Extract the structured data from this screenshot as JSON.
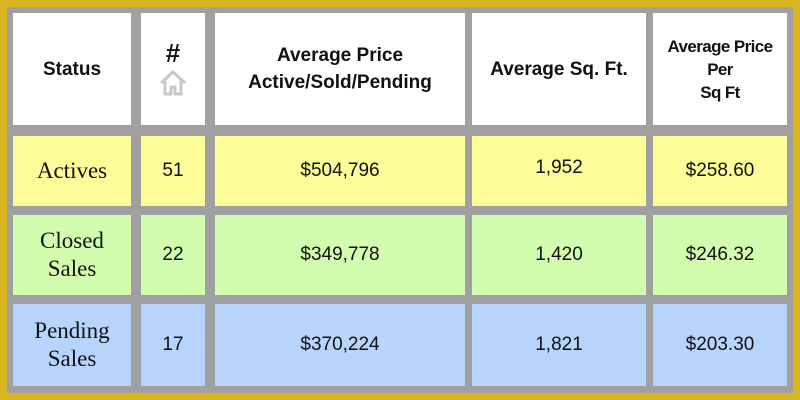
{
  "header": {
    "status": "Status",
    "count": "#",
    "count_icon": "home-icon",
    "avg_price": [
      "Average Price",
      "Active/Sold/Pending"
    ],
    "avg_sqft": "Average Sq. Ft.",
    "avg_ppsf": [
      "Average Price",
      "Per",
      "Sq Ft"
    ]
  },
  "rows": [
    {
      "status": [
        "Actives"
      ],
      "count": "51",
      "avg_price": "$504,796",
      "avg_sqft": "1,952",
      "ppsf": "$258.60",
      "color": "#fcfc98"
    },
    {
      "status": [
        "Closed",
        "Sales"
      ],
      "count": "22",
      "avg_price": "$349,778",
      "avg_sqft": "1,420",
      "ppsf": "$246.32",
      "color": "#d3fdae"
    },
    {
      "status": [
        "Pending",
        "Sales"
      ],
      "count": "17",
      "avg_price": "$370,224",
      "avg_sqft": "1,821",
      "ppsf": "$203.30",
      "color": "#b7d5fc"
    }
  ],
  "colors": {
    "frame": "#d9b51f",
    "gridline": "#a0a0a0",
    "header_bg": "#ffffff"
  }
}
